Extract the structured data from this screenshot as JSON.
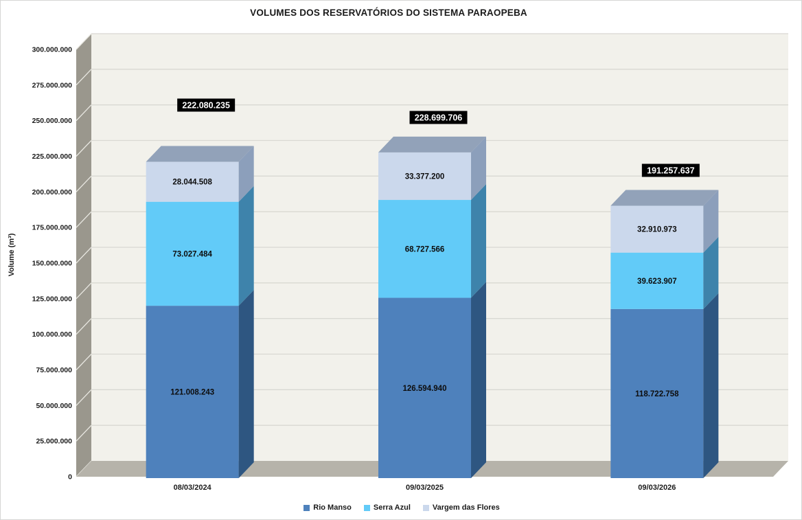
{
  "title": "VOLUMES DOS RESERVATÓRIOS DO SISTEMA PARAOPEBA",
  "chart_data": {
    "type": "bar",
    "subtype": "3d-stacked-column",
    "title": "VOLUMES DOS RESERVATÓRIOS DO SISTEMA PARAOPEBA",
    "ylabel": "Volume (m³)",
    "xlabel": "",
    "ylim": [
      0,
      300000000
    ],
    "ytick_step": 25000000,
    "ytick_format": "thousands-separated-by-dots",
    "grid": true,
    "legend_position": "bottom",
    "categories": [
      "08/03/2024",
      "09/03/2025",
      "09/03/2026"
    ],
    "series": [
      {
        "name": "Rio Manso",
        "color": "#4E81BC",
        "side_color": "#2E5681",
        "values": [
          121008243,
          126594940,
          118722758
        ]
      },
      {
        "name": "Serra Azul",
        "color": "#62CBF8",
        "side_color": "#3E83AB",
        "values": [
          73027484,
          68727566,
          39623907
        ]
      },
      {
        "name": "Vargem das Flores",
        "color": "#CBD8EC",
        "side_color": "#8C9FBB",
        "values": [
          28044508,
          33377200,
          32910973
        ]
      }
    ],
    "totals": [
      222080235,
      228699706,
      191257637
    ],
    "total_label_style": {
      "bg": "#000000",
      "fg": "#FFFFFF"
    },
    "top_face_color": "#92A2B9",
    "wall_color": "#9A978D",
    "wall_hatch_color": "#E9E8E2",
    "floor_color": "#B6B3AA",
    "plot_bg": "#F2F1EB",
    "grid_color": "#D9D8D2"
  }
}
